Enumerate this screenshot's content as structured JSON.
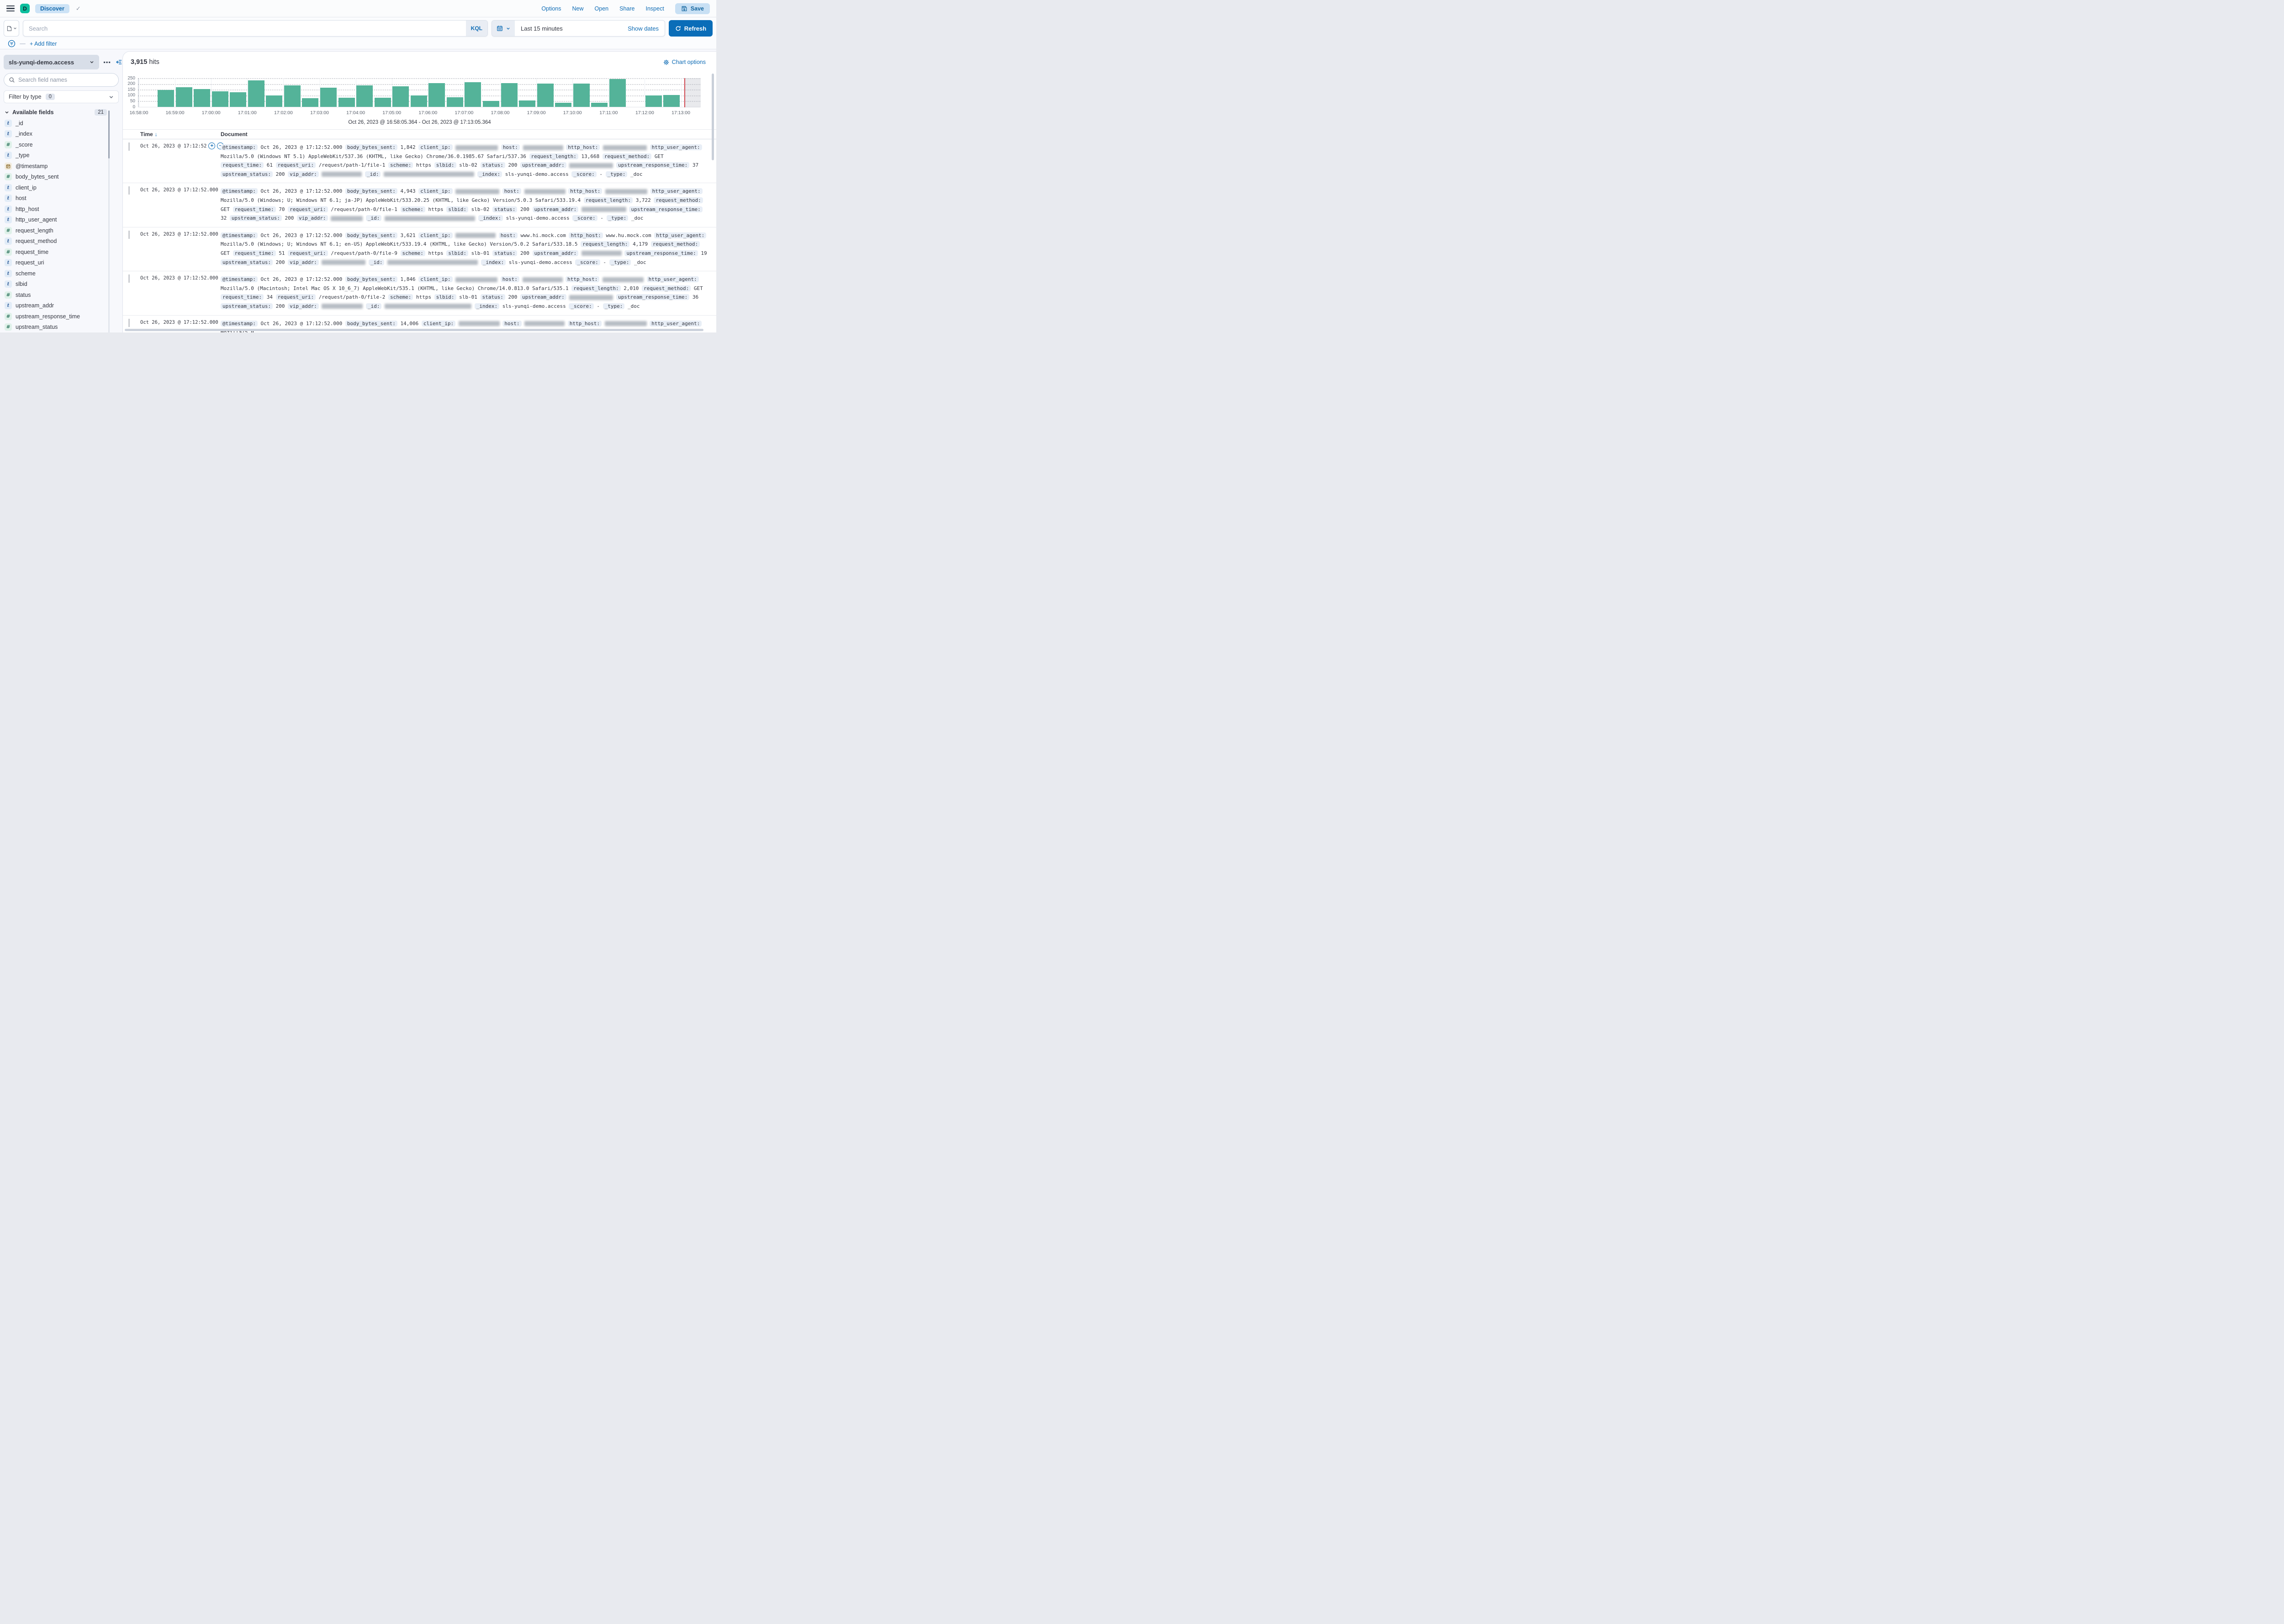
{
  "header": {
    "app_initial": "D",
    "app_badge_color": "#0dbf9e",
    "breadcrumb": "Discover",
    "nav_links": [
      "Options",
      "New",
      "Open",
      "Share",
      "Inspect"
    ],
    "save_label": "Save",
    "accent_blue": "#0f6cb5"
  },
  "query_bar": {
    "search_placeholder": "Search",
    "language_badge": "KQL",
    "time_range": "Last 15 minutes",
    "show_dates_label": "Show dates",
    "refresh_label": "Refresh",
    "add_filter_label": "+ Add filter"
  },
  "sidebar": {
    "index_pattern": "sls-yunqi-demo.access",
    "field_search_placeholder": "Search field names",
    "filter_by_type_label": "Filter by type",
    "filter_by_type_count": "0",
    "available_fields_label": "Available fields",
    "available_fields_count": "21",
    "fields": [
      {
        "name": "_id",
        "type": "string"
      },
      {
        "name": "_index",
        "type": "string"
      },
      {
        "name": "_score",
        "type": "number"
      },
      {
        "name": "_type",
        "type": "string"
      },
      {
        "name": "@timestamp",
        "type": "date"
      },
      {
        "name": "body_bytes_sent",
        "type": "number"
      },
      {
        "name": "client_ip",
        "type": "string"
      },
      {
        "name": "host",
        "type": "string"
      },
      {
        "name": "http_host",
        "type": "string"
      },
      {
        "name": "http_user_agent",
        "type": "string"
      },
      {
        "name": "request_length",
        "type": "number"
      },
      {
        "name": "request_method",
        "type": "string"
      },
      {
        "name": "request_time",
        "type": "number"
      },
      {
        "name": "request_uri",
        "type": "string"
      },
      {
        "name": "scheme",
        "type": "string"
      },
      {
        "name": "slbid",
        "type": "string"
      },
      {
        "name": "status",
        "type": "number"
      },
      {
        "name": "upstream_addr",
        "type": "string"
      },
      {
        "name": "upstream_response_time",
        "type": "number"
      },
      {
        "name": "upstream_status",
        "type": "number"
      }
    ]
  },
  "main": {
    "hits_number": "3,915",
    "hits_label": "hits",
    "chart_options_label": "Chart options",
    "table": {
      "time_header": "Time",
      "document_header": "Document"
    },
    "rows": [
      {
        "time_display": "Oct 26, 2023 @ 17:12:52",
        "hover_actions": true,
        "tokens": [
          {
            "f": "@timestamp",
            "v": "Oct 26, 2023 @ 17:12:52.000"
          },
          {
            "f": "body_bytes_sent",
            "v": "1,842"
          },
          {
            "f": "client_ip",
            "b": 93
          },
          {
            "f": "host",
            "b": 88
          },
          {
            "f": "http_host",
            "b": 96
          },
          {
            "f": "http_user_agent",
            "v": "Mozilla/5.0 (Windows NT 5.1) AppleWebKit/537.36 (KHTML, like Gecko) Chrome/36.0.1985.67 Safari/537.36"
          },
          {
            "f": "request_length",
            "v": "13,668"
          },
          {
            "f": "request_method",
            "v": "GET"
          },
          {
            "f": "request_time",
            "v": "61"
          },
          {
            "f": "request_uri",
            "v": "/request/path-1/file-1"
          },
          {
            "f": "scheme",
            "v": "https"
          },
          {
            "f": "slbid",
            "v": "slb-02"
          },
          {
            "f": "status",
            "v": "200"
          },
          {
            "f": "upstream_addr",
            "b": 96
          },
          {
            "f": "upstream_response_time",
            "v": "37"
          },
          {
            "f": "upstream_status",
            "v": "200"
          },
          {
            "f": "vip_addr",
            "b": 88
          },
          {
            "f": "_id",
            "b": 198
          },
          {
            "f": "_index",
            "v": "sls-yunqi-demo.access"
          },
          {
            "f": "_score",
            "v": "-"
          },
          {
            "f": "_type",
            "v": "_doc"
          }
        ]
      },
      {
        "time_display": "Oct 26, 2023 @ 17:12:52.000",
        "hover_actions": false,
        "tokens": [
          {
            "f": "@timestamp",
            "v": "Oct 26, 2023 @ 17:12:52.000"
          },
          {
            "f": "body_bytes_sent",
            "v": "4,943"
          },
          {
            "f": "client_ip",
            "b": 96
          },
          {
            "f": "host",
            "b": 90
          },
          {
            "f": "http_host",
            "b": 92
          },
          {
            "f": "http_user_agent",
            "v": "Mozilla/5.0 (Windows; U; Windows NT 6.1; ja-JP) AppleWebKit/533.20.25 (KHTML, like Gecko) Version/5.0.3 Safari/533.19.4"
          },
          {
            "f": "request_length",
            "v": "3,722"
          },
          {
            "f": "request_method",
            "v": "GET"
          },
          {
            "f": "request_time",
            "v": "70"
          },
          {
            "f": "request_uri",
            "v": "/request/path-0/file-1"
          },
          {
            "f": "scheme",
            "v": "https"
          },
          {
            "f": "slbid",
            "v": "slb-02"
          },
          {
            "f": "status",
            "v": "200"
          },
          {
            "f": "upstream_addr",
            "b": 98
          },
          {
            "f": "upstream_response_time",
            "v": "32"
          },
          {
            "f": "upstream_status",
            "v": "200"
          },
          {
            "f": "vip_addr",
            "b": 70
          },
          {
            "f": "_id",
            "b": 198
          },
          {
            "f": "_index",
            "v": "sls-yunqi-demo.access"
          },
          {
            "f": "_score",
            "v": "-"
          },
          {
            "f": "_type",
            "v": "_doc"
          }
        ]
      },
      {
        "time_display": "Oct 26, 2023 @ 17:12:52.000",
        "hover_actions": false,
        "tokens": [
          {
            "f": "@timestamp",
            "v": "Oct 26, 2023 @ 17:12:52.000"
          },
          {
            "f": "body_bytes_sent",
            "v": "3,621"
          },
          {
            "f": "client_ip",
            "b": 88
          },
          {
            "f": "host",
            "v": "www.hi.mock.com"
          },
          {
            "f": "http_host",
            "v": "www.hu.mock.com"
          },
          {
            "f": "http_user_agent",
            "v": "Mozilla/5.0 (Windows; U; Windows NT 6.1; en-US) AppleWebKit/533.19.4 (KHTML, like Gecko) Version/5.0.2 Safari/533.18.5"
          },
          {
            "f": "request_length",
            "v": "4,179"
          },
          {
            "f": "request_method",
            "v": "GET"
          },
          {
            "f": "request_time",
            "v": "51"
          },
          {
            "f": "request_uri",
            "v": "/request/path-0/file-9"
          },
          {
            "f": "scheme",
            "v": "https"
          },
          {
            "f": "slbid",
            "v": "slb-01"
          },
          {
            "f": "status",
            "v": "200"
          },
          {
            "f": "upstream_addr",
            "b": 88
          },
          {
            "f": "upstream_response_time",
            "v": "19"
          },
          {
            "f": "upstream_status",
            "v": "200"
          },
          {
            "f": "vip_addr",
            "b": 96
          },
          {
            "f": "_id",
            "b": 198
          },
          {
            "f": "_index",
            "v": "sls-yunqi-demo.access"
          },
          {
            "f": "_score",
            "v": "-"
          },
          {
            "f": "_type",
            "v": "_doc"
          }
        ]
      },
      {
        "time_display": "Oct 26, 2023 @ 17:12:52.000",
        "hover_actions": false,
        "tokens": [
          {
            "f": "@timestamp",
            "v": "Oct 26, 2023 @ 17:12:52.000"
          },
          {
            "f": "body_bytes_sent",
            "v": "1,846"
          },
          {
            "f": "client_ip",
            "b": 92
          },
          {
            "f": "host",
            "b": 88
          },
          {
            "f": "http_host",
            "b": 90
          },
          {
            "f": "http_user_agent",
            "v": "Mozilla/5.0 (Macintosh; Intel Mac OS X 10_6_7) AppleWebKit/535.1 (KHTML, like Gecko) Chrome/14.0.813.0 Safari/535.1"
          },
          {
            "f": "request_length",
            "v": "2,010"
          },
          {
            "f": "request_method",
            "v": "GET"
          },
          {
            "f": "request_time",
            "v": "34"
          },
          {
            "f": "request_uri",
            "v": "/request/path-0/file-2"
          },
          {
            "f": "scheme",
            "v": "https"
          },
          {
            "f": "slbid",
            "v": "slb-01"
          },
          {
            "f": "status",
            "v": "200"
          },
          {
            "f": "upstream_addr",
            "b": 96
          },
          {
            "f": "upstream_response_time",
            "v": "36"
          },
          {
            "f": "upstream_status",
            "v": "200"
          },
          {
            "f": "vip_addr",
            "b": 90
          },
          {
            "f": "_id",
            "b": 190
          },
          {
            "f": "_index",
            "v": "sls-yunqi-demo.access"
          },
          {
            "f": "_score",
            "v": "-"
          },
          {
            "f": "_type",
            "v": "_doc"
          }
        ]
      },
      {
        "time_display": "Oct 26, 2023 @ 17:12:52.000",
        "hover_actions": false,
        "tokens": [
          {
            "f": "@timestamp",
            "v": "Oct 26, 2023 @ 17:12:52.000"
          },
          {
            "f": "body_bytes_sent",
            "v": "14,006"
          },
          {
            "f": "client_ip",
            "b": 90
          },
          {
            "f": "host",
            "b": 88
          },
          {
            "f": "http_host",
            "b": 92
          },
          {
            "f": "http_user_agent",
            "v": "Mozilla/5.0"
          }
        ]
      }
    ]
  },
  "chart_data": {
    "type": "bar",
    "bucket_interval": "30 seconds",
    "categories": [
      "16:58:30",
      "16:59:00",
      "16:59:30",
      "17:00:00",
      "17:00:30",
      "17:01:00",
      "17:01:30",
      "17:02:00",
      "17:02:30",
      "17:03:00",
      "17:03:30",
      "17:04:00",
      "17:04:30",
      "17:05:00",
      "17:05:30",
      "17:06:00",
      "17:06:30",
      "17:07:00",
      "17:07:30",
      "17:08:00",
      "17:08:30",
      "17:09:00",
      "17:09:30",
      "17:10:00",
      "17:10:30",
      "17:11:00",
      "17:11:30",
      "17:12:00",
      "17:12:30"
    ],
    "values": [
      145,
      172,
      153,
      135,
      127,
      232,
      100,
      185,
      77,
      165,
      78,
      186,
      80,
      177,
      100,
      208,
      82,
      214,
      53,
      206,
      55,
      202,
      34,
      202,
      35,
      243,
      0,
      100,
      102
    ],
    "x_tick_labels": [
      "16:58:00",
      "16:59:00",
      "17:00:00",
      "17:01:00",
      "17:02:00",
      "17:03:00",
      "17:04:00",
      "17:05:00",
      "17:06:00",
      "17:07:00",
      "17:08:00",
      "17:09:00",
      "17:10:00",
      "17:11:00",
      "17:12:00",
      "17:13:00"
    ],
    "yticks": [
      0,
      50,
      100,
      150,
      200,
      250
    ],
    "ylim": [
      0,
      250
    ],
    "xlabel": "",
    "ylabel": "",
    "bar_color": "#54b399",
    "time_marker_color": "#cf4a52",
    "subtitle": "Oct 26, 2023 @ 16:58:05.364 - Oct 26, 2023 @ 17:13:05.364"
  }
}
